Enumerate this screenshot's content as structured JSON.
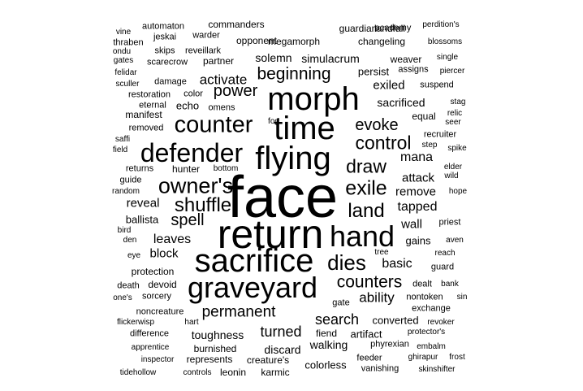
{
  "background": "#ffffff",
  "text_color": "#000000",
  "words": [
    {
      "text": "face",
      "weight": 72
    },
    {
      "text": "return",
      "weight": 50
    },
    {
      "text": "flying",
      "weight": 40
    },
    {
      "text": "time",
      "weight": 40
    },
    {
      "text": "morph",
      "weight": 40
    },
    {
      "text": "sacrifice",
      "weight": 40
    },
    {
      "text": "graveyard",
      "weight": 36
    },
    {
      "text": "hand",
      "weight": 36
    },
    {
      "text": "defender",
      "weight": 32
    },
    {
      "text": "counter",
      "weight": 29
    },
    {
      "text": "owner's",
      "weight": 27
    },
    {
      "text": "dies",
      "weight": 26
    },
    {
      "text": "exile",
      "weight": 25
    },
    {
      "text": "shuffle",
      "weight": 24
    },
    {
      "text": "land",
      "weight": 24
    },
    {
      "text": "control",
      "weight": 23
    },
    {
      "text": "draw",
      "weight": 23
    },
    {
      "text": "counters",
      "weight": 21
    },
    {
      "text": "beginning",
      "weight": 21
    },
    {
      "text": "evoke",
      "weight": 20
    },
    {
      "text": "power",
      "weight": 20
    },
    {
      "text": "spell",
      "weight": 20
    },
    {
      "text": "permanent",
      "weight": 19
    },
    {
      "text": "search",
      "weight": 18
    },
    {
      "text": "turned",
      "weight": 18
    },
    {
      "text": "activate",
      "weight": 17
    },
    {
      "text": "ability",
      "weight": 17
    },
    {
      "text": "tapped",
      "weight": 16
    },
    {
      "text": "mana",
      "weight": 16
    },
    {
      "text": "leaves",
      "weight": 16
    },
    {
      "text": "basic",
      "weight": 16
    },
    {
      "text": "exiled",
      "weight": 15
    },
    {
      "text": "attack",
      "weight": 15
    },
    {
      "text": "remove",
      "weight": 15
    },
    {
      "text": "reveal",
      "weight": 15
    },
    {
      "text": "wall",
      "weight": 15
    },
    {
      "text": "block",
      "weight": 15
    },
    {
      "text": "solemn",
      "weight": 14
    },
    {
      "text": "simulacrum",
      "weight": 14
    },
    {
      "text": "sacrificed",
      "weight": 14
    },
    {
      "text": "toughness",
      "weight": 14
    },
    {
      "text": "discard",
      "weight": 14
    },
    {
      "text": "walking",
      "weight": 14
    },
    {
      "text": "ballista",
      "weight": 13
    },
    {
      "text": "echo",
      "weight": 13
    },
    {
      "text": "persist",
      "weight": 13
    },
    {
      "text": "gains",
      "weight": 13
    },
    {
      "text": "converted",
      "weight": 13
    },
    {
      "text": "artifact",
      "weight": 13
    },
    {
      "text": "colorless",
      "weight": 13
    },
    {
      "text": "partner",
      "weight": 12
    },
    {
      "text": "equal",
      "weight": 12
    },
    {
      "text": "fiend",
      "weight": 12
    },
    {
      "text": "megamorph",
      "weight": 12
    },
    {
      "text": "opponent",
      "weight": 12
    },
    {
      "text": "protection",
      "weight": 12
    },
    {
      "text": "devoid",
      "weight": 12
    },
    {
      "text": "hunter",
      "weight": 12
    },
    {
      "text": "creature's",
      "weight": 12
    },
    {
      "text": "guardian",
      "weight": 12
    },
    {
      "text": "landfall",
      "weight": 12
    },
    {
      "text": "changeling",
      "weight": 12
    },
    {
      "text": "commanders",
      "weight": 12
    },
    {
      "text": "manifest",
      "weight": 12
    },
    {
      "text": "burnished",
      "weight": 12
    },
    {
      "text": "represents",
      "weight": 12
    },
    {
      "text": "karmic",
      "weight": 12
    },
    {
      "text": "leonin",
      "weight": 12
    },
    {
      "text": "weaver",
      "weight": 12
    },
    {
      "text": "reveillark",
      "weight": 11
    },
    {
      "text": "damage",
      "weight": 11
    },
    {
      "text": "color",
      "weight": 11
    },
    {
      "text": "omens",
      "weight": 11
    },
    {
      "text": "restoration",
      "weight": 11
    },
    {
      "text": "eternal",
      "weight": 11
    },
    {
      "text": "removed",
      "weight": 11
    },
    {
      "text": "suspend",
      "weight": 11
    },
    {
      "text": "recruiter",
      "weight": 11
    },
    {
      "text": "priest",
      "weight": 11
    },
    {
      "text": "guard",
      "weight": 11
    },
    {
      "text": "exchange",
      "weight": 11
    },
    {
      "text": "dealt",
      "weight": 11
    },
    {
      "text": "nontoken",
      "weight": 11
    },
    {
      "text": "gate",
      "weight": 11
    },
    {
      "text": "phyrexian",
      "weight": 11
    },
    {
      "text": "feeder",
      "weight": 11
    },
    {
      "text": "vanishing",
      "weight": 11
    },
    {
      "text": "noncreature",
      "weight": 11
    },
    {
      "text": "difference",
      "weight": 11
    },
    {
      "text": "sorcery",
      "weight": 11
    },
    {
      "text": "death",
      "weight": 11
    },
    {
      "text": "guide",
      "weight": 11
    },
    {
      "text": "returns",
      "weight": 11
    },
    {
      "text": "scarecrow",
      "weight": 11
    },
    {
      "text": "academy",
      "weight": 11
    },
    {
      "text": "assigns",
      "weight": 11
    },
    {
      "text": "warder",
      "weight": 11
    },
    {
      "text": "skips",
      "weight": 11
    },
    {
      "text": "jeskai",
      "weight": 11
    },
    {
      "text": "automaton",
      "weight": 11
    },
    {
      "text": "thraben",
      "weight": 11
    },
    {
      "text": "perdition's",
      "weight": 10
    },
    {
      "text": "blossoms",
      "weight": 10
    },
    {
      "text": "single",
      "weight": 10
    },
    {
      "text": "piercer",
      "weight": 10
    },
    {
      "text": "stag",
      "weight": 10
    },
    {
      "text": "relic",
      "weight": 10
    },
    {
      "text": "seer",
      "weight": 10
    },
    {
      "text": "step",
      "weight": 10
    },
    {
      "text": "spike",
      "weight": 10
    },
    {
      "text": "elder",
      "weight": 10
    },
    {
      "text": "wild",
      "weight": 10
    },
    {
      "text": "hope",
      "weight": 10
    },
    {
      "text": "aven",
      "weight": 10
    },
    {
      "text": "reach",
      "weight": 10
    },
    {
      "text": "tree",
      "weight": 10
    },
    {
      "text": "bank",
      "weight": 10
    },
    {
      "text": "sin",
      "weight": 10
    },
    {
      "text": "revoker",
      "weight": 10
    },
    {
      "text": "protector's",
      "weight": 10
    },
    {
      "text": "embalm",
      "weight": 10
    },
    {
      "text": "frost",
      "weight": 10
    },
    {
      "text": "ghirapur",
      "weight": 10
    },
    {
      "text": "skinshifter",
      "weight": 10
    },
    {
      "text": "controls",
      "weight": 10
    },
    {
      "text": "tidehollow",
      "weight": 10
    },
    {
      "text": "inspector",
      "weight": 10
    },
    {
      "text": "apprentice",
      "weight": 10
    },
    {
      "text": "flickerwisp",
      "weight": 10
    },
    {
      "text": "hart",
      "weight": 10
    },
    {
      "text": "one's",
      "weight": 10
    },
    {
      "text": "eye",
      "weight": 10
    },
    {
      "text": "den",
      "weight": 10
    },
    {
      "text": "bird",
      "weight": 10
    },
    {
      "text": "random",
      "weight": 10
    },
    {
      "text": "field",
      "weight": 10
    },
    {
      "text": "saffi",
      "weight": 10
    },
    {
      "text": "bottom",
      "weight": 10
    },
    {
      "text": "fog",
      "weight": 10
    },
    {
      "text": "sculler",
      "weight": 10
    },
    {
      "text": "felidar",
      "weight": 10
    },
    {
      "text": "gates",
      "weight": 10
    },
    {
      "text": "ondu",
      "weight": 10
    },
    {
      "text": "vine",
      "weight": 10
    }
  ]
}
